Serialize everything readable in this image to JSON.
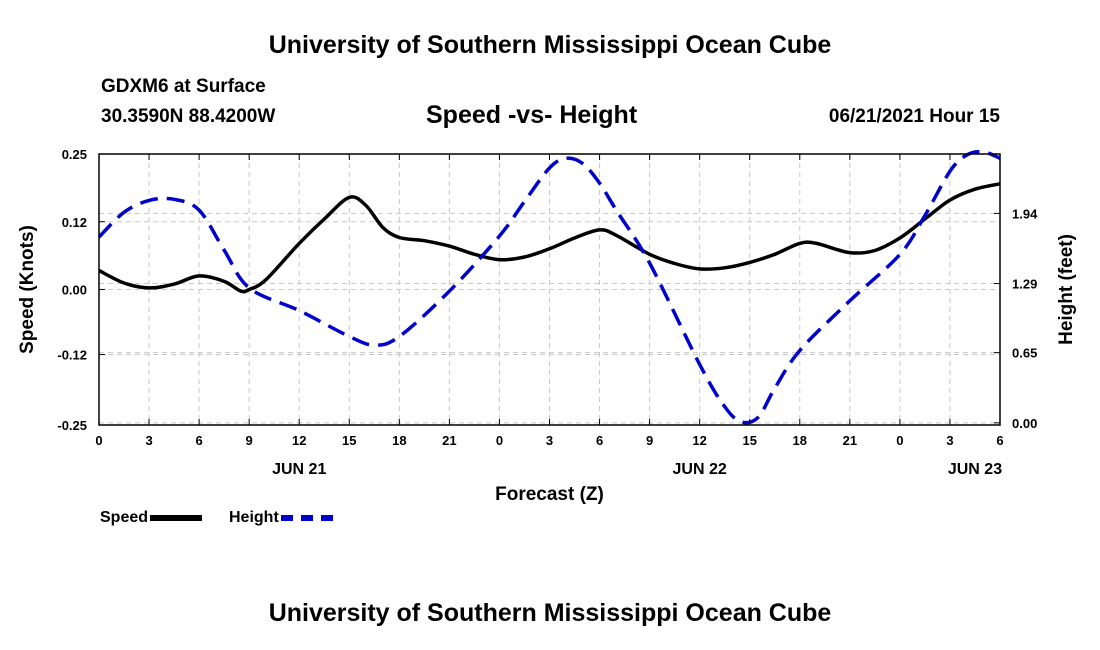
{
  "header": {
    "top_title": "University of Southern Mississippi Ocean Cube",
    "station": "GDXM6 at Surface",
    "coords": "30.3590N  88.4200W",
    "chart_title": "Speed -vs- Height",
    "datetime": "06/21/2021 Hour 15"
  },
  "footer": {
    "bottom_title": "University of Southern Mississippi Ocean Cube"
  },
  "legend": {
    "speed_label": "Speed",
    "height_label": "Height",
    "speed_color": "#000000",
    "height_color": "#0000cc"
  },
  "chart_data": {
    "type": "line",
    "title": "Speed -vs- Height",
    "xlabel": "Forecast (Z)",
    "ylabel": "Speed (Knots)",
    "y2label": "Height (feet)",
    "xlim": [
      0,
      54
    ],
    "ylim": [
      -0.25,
      0.25
    ],
    "y2lim": [
      -0.02,
      2.49
    ],
    "grid": true,
    "x_ticks": [
      {
        "x": 0,
        "label": "0"
      },
      {
        "x": 3,
        "label": "3"
      },
      {
        "x": 6,
        "label": "6"
      },
      {
        "x": 9,
        "label": "9"
      },
      {
        "x": 12,
        "label": "12"
      },
      {
        "x": 15,
        "label": "15"
      },
      {
        "x": 18,
        "label": "18"
      },
      {
        "x": 21,
        "label": "21"
      },
      {
        "x": 24,
        "label": "0"
      },
      {
        "x": 27,
        "label": "3"
      },
      {
        "x": 30,
        "label": "6"
      },
      {
        "x": 33,
        "label": "9"
      },
      {
        "x": 36,
        "label": "12"
      },
      {
        "x": 39,
        "label": "15"
      },
      {
        "x": 42,
        "label": "18"
      },
      {
        "x": 45,
        "label": "21"
      },
      {
        "x": 48,
        "label": "0"
      },
      {
        "x": 51,
        "label": "3"
      },
      {
        "x": 54,
        "label": "6"
      }
    ],
    "date_labels": [
      {
        "x": 12,
        "label": "JUN 21"
      },
      {
        "x": 36,
        "label": "JUN 22"
      },
      {
        "x": 52.5,
        "label": "JUN 23"
      }
    ],
    "y_ticks": [
      {
        "value": 0.25,
        "label": "0.25"
      },
      {
        "value": 0.125,
        "label": "0.12"
      },
      {
        "value": 0.0,
        "label": "0.00"
      },
      {
        "value": -0.12,
        "label": "-0.12"
      },
      {
        "value": -0.25,
        "label": "-0.25"
      }
    ],
    "y2_ticks": [
      {
        "value": 1.94,
        "label": "1.94"
      },
      {
        "value": 1.29,
        "label": "1.29"
      },
      {
        "value": 0.65,
        "label": "0.65"
      },
      {
        "value": 0.0,
        "label": "0.00"
      }
    ],
    "series": [
      {
        "name": "Speed",
        "axis": "left",
        "style": "solid",
        "color": "#000000",
        "x": [
          0,
          1.5,
          3,
          4.5,
          6,
          7.5,
          8.5,
          9,
          10,
          12,
          13.5,
          15,
          16,
          17,
          18,
          19.5,
          21,
          22.5,
          24,
          25.5,
          27,
          28.5,
          30,
          31,
          33,
          34.5,
          36,
          37.5,
          39,
          40.5,
          42,
          43,
          45,
          46.5,
          48,
          49.5,
          51,
          52.5,
          54
        ],
        "values": [
          0.035,
          0.012,
          0.003,
          0.01,
          0.025,
          0.015,
          -0.003,
          0.0,
          0.018,
          0.085,
          0.13,
          0.17,
          0.155,
          0.115,
          0.096,
          0.09,
          0.08,
          0.065,
          0.055,
          0.06,
          0.075,
          0.095,
          0.11,
          0.1,
          0.065,
          0.048,
          0.038,
          0.04,
          0.05,
          0.065,
          0.085,
          0.085,
          0.068,
          0.072,
          0.095,
          0.13,
          0.165,
          0.185,
          0.195
        ]
      },
      {
        "name": "Height",
        "axis": "right",
        "style": "dashed",
        "color": "#0000cc",
        "x": [
          0,
          1.5,
          3,
          4.5,
          6,
          7.5,
          9,
          12,
          15,
          16.5,
          18,
          21,
          24,
          25.5,
          27,
          28,
          29,
          30,
          31,
          33,
          36,
          37.5,
          38.5,
          39.5,
          40.5,
          42,
          45,
          48,
          49.5,
          51,
          52,
          53,
          54
        ],
        "values": [
          1.72,
          1.95,
          2.06,
          2.07,
          1.97,
          1.6,
          1.25,
          1.04,
          0.8,
          0.72,
          0.8,
          1.22,
          1.73,
          2.05,
          2.36,
          2.45,
          2.4,
          2.22,
          1.97,
          1.48,
          0.54,
          0.15,
          0.01,
          0.05,
          0.32,
          0.67,
          1.13,
          1.56,
          1.92,
          2.33,
          2.48,
          2.51,
          2.45
        ]
      }
    ]
  }
}
